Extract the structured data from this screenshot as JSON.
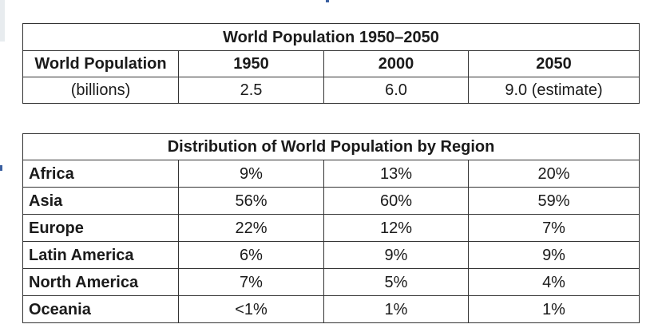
{
  "population_table": {
    "title": "World Population 1950–2050",
    "row_header_1": "World Population",
    "row_header_2": "(billions)",
    "years": [
      "1950",
      "2000",
      "2050"
    ],
    "values": [
      "2.5",
      "6.0",
      "9.0 (estimate)"
    ]
  },
  "region_table": {
    "title": "Distribution of World Population by Region",
    "rows": [
      {
        "region": "Africa",
        "values": [
          "9%",
          "13%",
          "20%"
        ]
      },
      {
        "region": "Asia",
        "values": [
          "56%",
          "60%",
          "59%"
        ]
      },
      {
        "region": "Europe",
        "values": [
          "22%",
          "12%",
          "7%"
        ]
      },
      {
        "region": "Latin America",
        "values": [
          "6%",
          "9%",
          "9%"
        ]
      },
      {
        "region": "North America",
        "values": [
          "7%",
          "5%",
          "4%"
        ]
      },
      {
        "region": "Oceania",
        "values": [
          "<1%",
          "1%",
          "1%"
        ]
      }
    ]
  },
  "colors": {
    "border": "#333333",
    "text": "#1a1a1a",
    "edge_mark": "#3a5fa0"
  }
}
